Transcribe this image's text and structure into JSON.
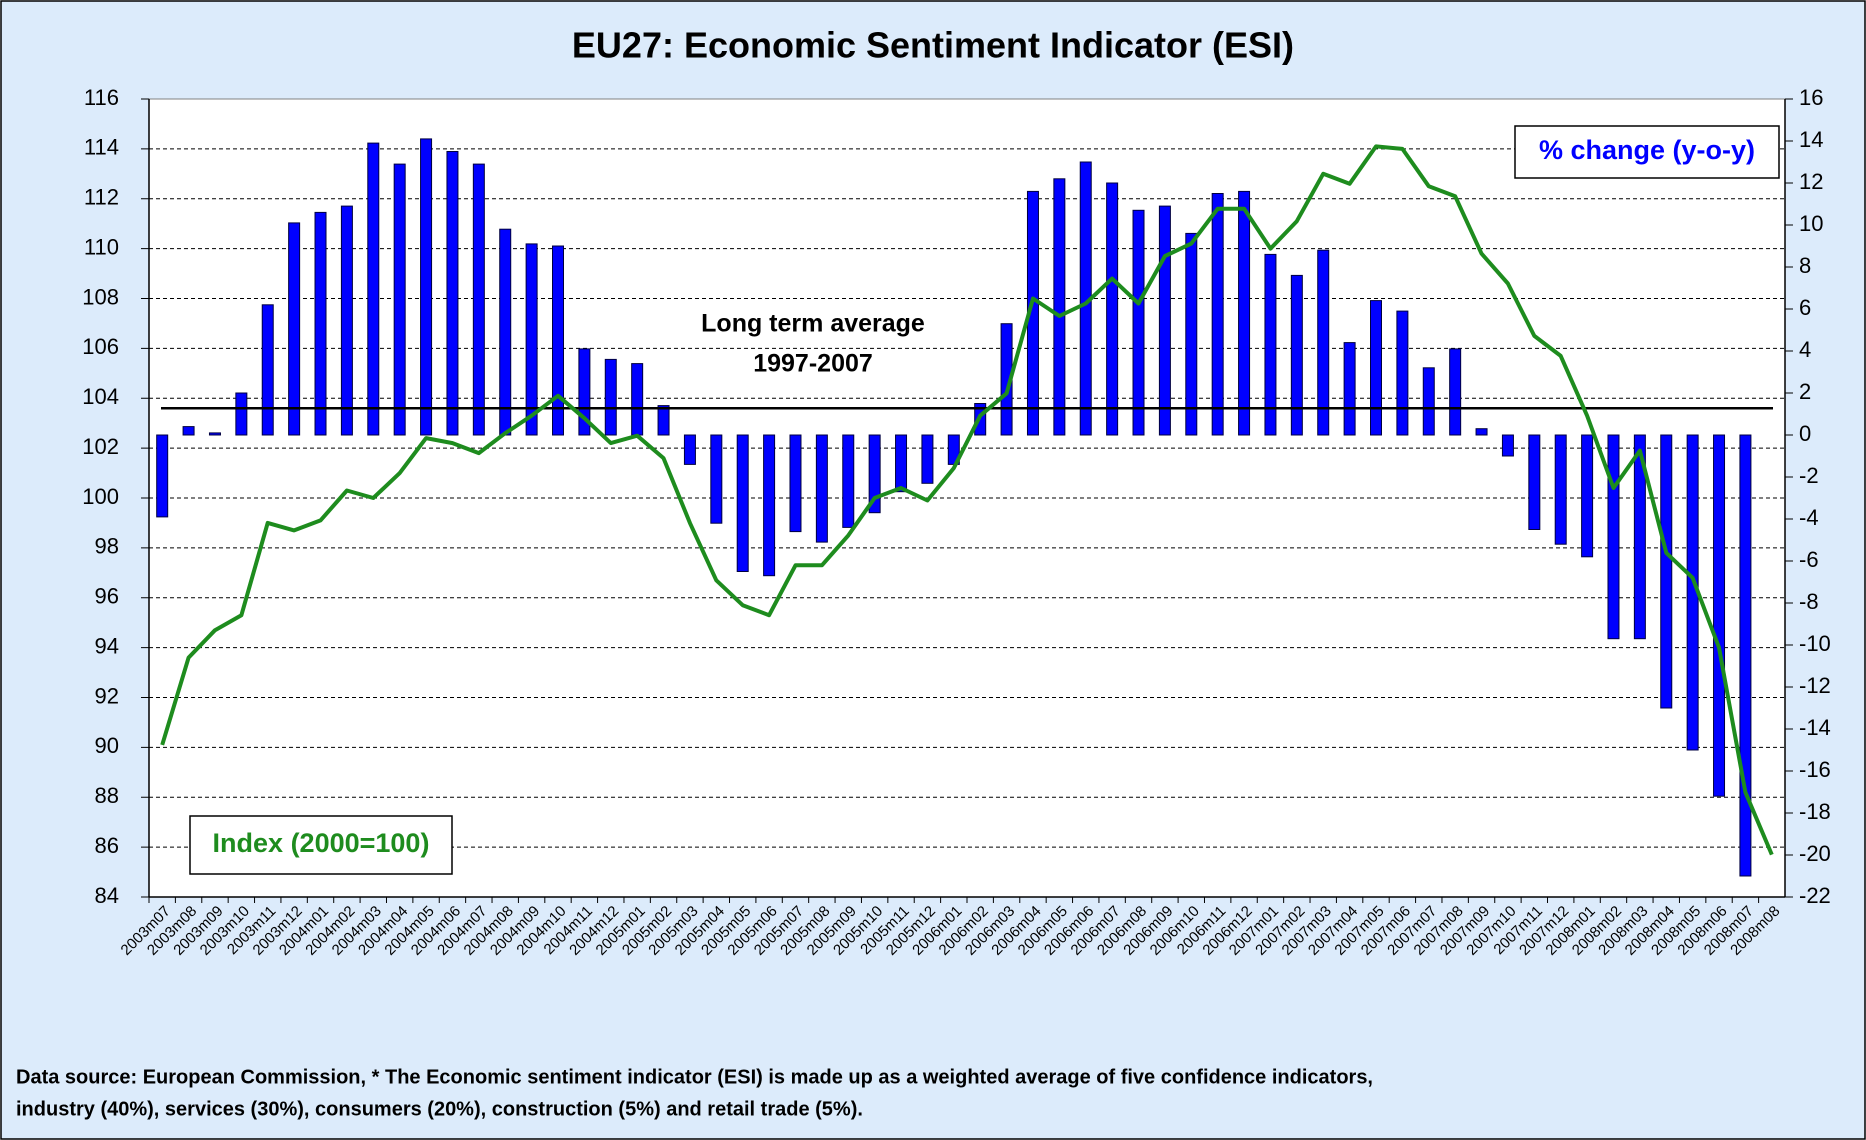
{
  "chart_data": {
    "type": "bar_line",
    "title": "EU27: Economic Sentiment Indicator (ESI)",
    "footnote": [
      "Data source: European Commission, * The Economic sentiment indicator (ESI) is made up as a weighted average of five confidence indicators,",
      "industry (40%), services (30%), consumers (20%), construction (5%) and retail trade (5%)."
    ],
    "categories": [
      "2003m07",
      "2003m08",
      "2003m09",
      "2003m10",
      "2003m11",
      "2003m12",
      "2004m01",
      "2004m02",
      "2004m03",
      "2004m04",
      "2004m05",
      "2004m06",
      "2004m07",
      "2004m08",
      "2004m09",
      "2004m10",
      "2004m11",
      "2004m12",
      "2005m01",
      "2005m02",
      "2005m03",
      "2005m04",
      "2005m05",
      "2005m06",
      "2005m07",
      "2005m08",
      "2005m09",
      "2005m10",
      "2005m11",
      "2005m12",
      "2006m01",
      "2006m02",
      "2006m03",
      "2006m04",
      "2006m05",
      "2006m06",
      "2006m07",
      "2006m08",
      "2006m09",
      "2006m10",
      "2006m11",
      "2006m12",
      "2007m01",
      "2007m02",
      "2007m03",
      "2007m04",
      "2007m05",
      "2007m06",
      "2007m07",
      "2007m08",
      "2007m09",
      "2007m10",
      "2007m11",
      "2007m12",
      "2008m01",
      "2008m02",
      "2008m03",
      "2008m04",
      "2008m05",
      "2008m06",
      "2008m07",
      "2008m08"
    ],
    "series": [
      {
        "name": "% change (y-o-y)",
        "kind": "bar",
        "axis": "y2",
        "color": "#0000ff",
        "values": [
          -3.9,
          0.4,
          0.1,
          2.0,
          6.2,
          10.1,
          10.6,
          10.9,
          13.9,
          12.9,
          14.1,
          13.5,
          12.9,
          9.8,
          9.1,
          9.0,
          4.1,
          3.6,
          3.4,
          1.4,
          -1.4,
          -4.2,
          -6.5,
          -6.7,
          -4.6,
          -5.1,
          -4.4,
          -3.7,
          -2.7,
          -2.3,
          -1.4,
          1.5,
          5.3,
          11.6,
          12.2,
          13.0,
          12.0,
          10.7,
          10.9,
          9.6,
          11.5,
          11.6,
          8.6,
          7.6,
          8.8,
          4.4,
          6.4,
          5.9,
          3.2,
          4.1,
          0.3,
          -1.0,
          -4.5,
          -5.2,
          -5.8,
          -9.7,
          -9.7,
          -13.0,
          -15.0,
          -17.2,
          -21.0,
          null
        ]
      },
      {
        "name": "Index (2000=100)",
        "kind": "line",
        "axis": "y",
        "color": "#1e8c1e",
        "values": [
          90.1,
          93.6,
          94.7,
          95.3,
          99.0,
          98.7,
          99.1,
          100.3,
          100.0,
          101.0,
          102.4,
          102.2,
          101.8,
          102.6,
          103.3,
          104.1,
          103.2,
          102.2,
          102.5,
          101.6,
          99.0,
          96.7,
          95.7,
          95.3,
          97.3,
          97.3,
          98.5,
          100.0,
          100.4,
          99.9,
          101.2,
          103.3,
          104.2,
          108.0,
          107.3,
          107.8,
          108.8,
          107.8,
          109.7,
          110.2,
          111.6,
          111.6,
          110.0,
          111.1,
          113.0,
          112.6,
          114.1,
          114.0,
          112.5,
          112.1,
          109.8,
          108.6,
          106.5,
          105.7,
          103.3,
          100.4,
          101.9,
          97.8,
          96.8,
          94.0,
          88.2,
          85.7
        ]
      }
    ],
    "reference_line": {
      "value": 103.6,
      "label": [
        "Long term average",
        "1997-2007"
      ]
    },
    "ylim": [
      84,
      116
    ],
    "yticks": [
      84,
      86,
      88,
      90,
      92,
      94,
      96,
      98,
      100,
      102,
      104,
      106,
      108,
      110,
      112,
      114,
      116
    ],
    "y2lim": [
      -22,
      16
    ],
    "y2ticks": [
      -22,
      -20,
      -18,
      -16,
      -14,
      -12,
      -10,
      -8,
      -6,
      -4,
      -2,
      0,
      2,
      4,
      6,
      8,
      10,
      12,
      14,
      16
    ],
    "grid": true
  }
}
